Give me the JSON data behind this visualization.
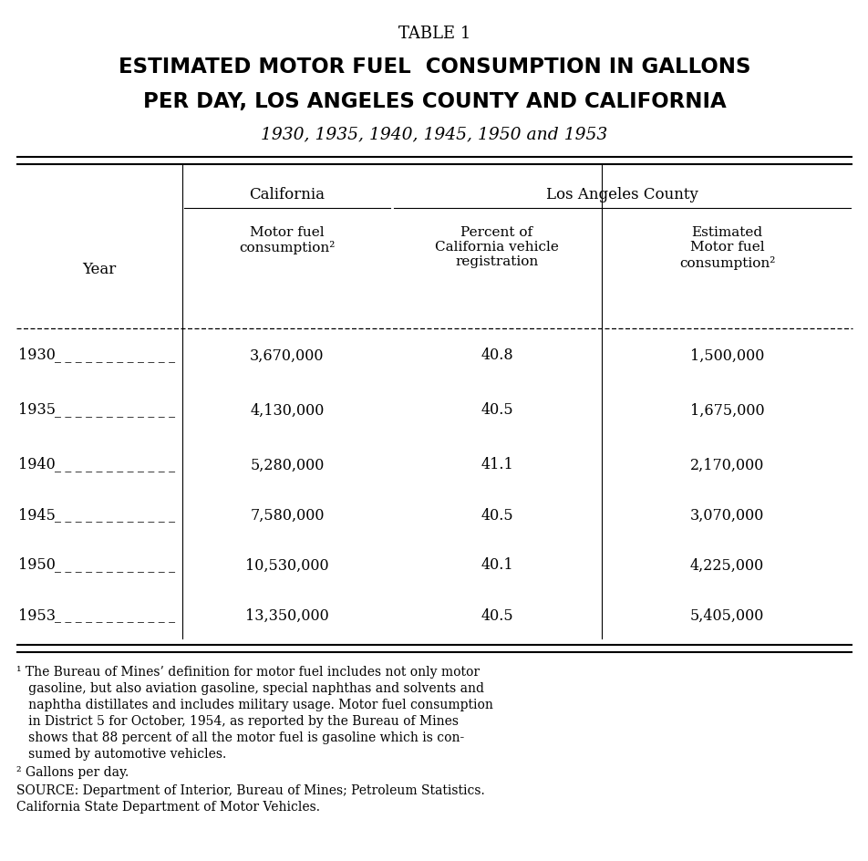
{
  "table_label": "TABLE 1",
  "title_line1": "ESTIMATED MOTOR FUEL  CONSUMPTION IN GALLONS",
  "title_line2": "PER DAY, LOS ANGELES COUNTY AND CALIFORNIA",
  "subtitle": "1930, 1935, 1940, 1945, 1950 and 1953",
  "col_group1": "California",
  "col_group2": "Los Angeles County",
  "col1_header": "Motor fuel\nconsumption²",
  "col2_header": "Percent of\nCalifornia vehicle\nregistration",
  "col3_header": "Estimated\nMotor fuel\nconsumption²",
  "row_label": "Year",
  "years": [
    "1930",
    "1935",
    "1940",
    "1945",
    "1950",
    "1953"
  ],
  "col1_values": [
    "3,670,000",
    "4,130,000",
    "5,280,000",
    "7,580,000",
    "10,530,000",
    "13,350,000"
  ],
  "col2_values": [
    "40.8",
    "40.5",
    "41.1",
    "40.5",
    "40.1",
    "40.5"
  ],
  "col3_values": [
    "1,500,000",
    "1,675,000",
    "2,170,000",
    "3,070,000",
    "4,225,000",
    "5,405,000"
  ],
  "footnote1": "¹ The Bureau of Mines’ definition for motor fuel includes not only motor gasoline, but also aviation gasoline, special naphthas and solvents and naphtha distillates and includes military usage. Motor fuel consumption in District 5 for October, 1954, as reported by the Bureau of Mines shows that 88 percent of all the motor fuel is gasoline which is con-sumed by automotive vehicles.",
  "footnote2": "² Gallons per day.",
  "source": "SOURCE: Department of Interior, Bureau of Mines; Petroleum Statistics.\n    California State Department of Motor Vehicles.",
  "bg_color": "#ffffff",
  "text_color": "#000000"
}
